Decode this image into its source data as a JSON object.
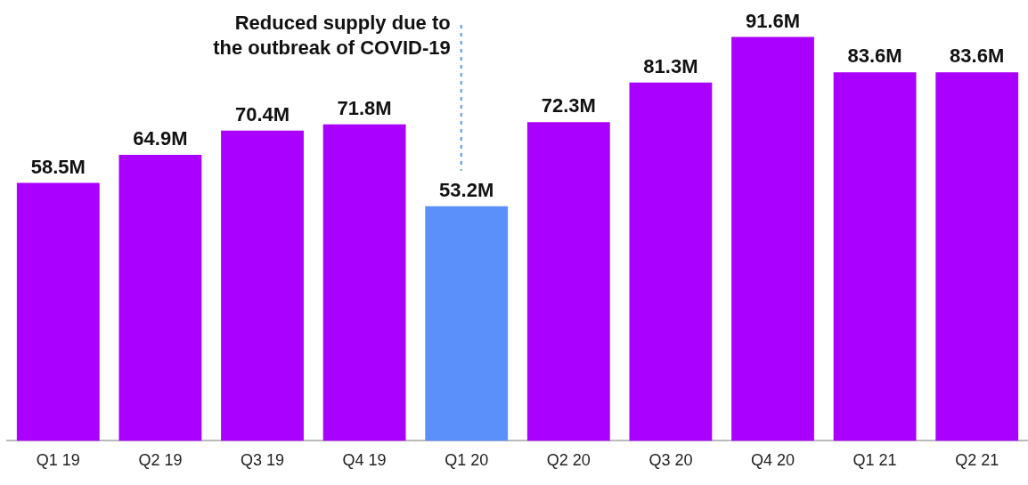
{
  "chart_data": {
    "type": "bar",
    "categories": [
      "Q1 19",
      "Q2 19",
      "Q3 19",
      "Q4 19",
      "Q1 20",
      "Q2 20",
      "Q3 20",
      "Q4 20",
      "Q1 21",
      "Q2 21"
    ],
    "values": [
      58.5,
      64.9,
      70.4,
      71.8,
      53.2,
      72.3,
      81.3,
      91.6,
      83.6,
      83.6
    ],
    "colors": [
      "#aa00ff",
      "#aa00ff",
      "#aa00ff",
      "#aa00ff",
      "#5b8ff9",
      "#aa00ff",
      "#aa00ff",
      "#aa00ff",
      "#aa00ff",
      "#aa00ff"
    ],
    "value_labels": [
      "58.5M",
      "64.9M",
      "70.4M",
      "71.8M",
      "53.2M",
      "72.3M",
      "81.3M",
      "91.6M",
      "83.6M",
      "83.6M"
    ],
    "tick_labels": "x",
    "grid": false,
    "legend": false,
    "ref_lines": [
      {
        "axis": "x",
        "value": "Q1 20",
        "label": "Reduced supply due to the outbreak of COVID-19",
        "color": "#5b8ff9",
        "line_style": "dashed"
      }
    ]
  }
}
